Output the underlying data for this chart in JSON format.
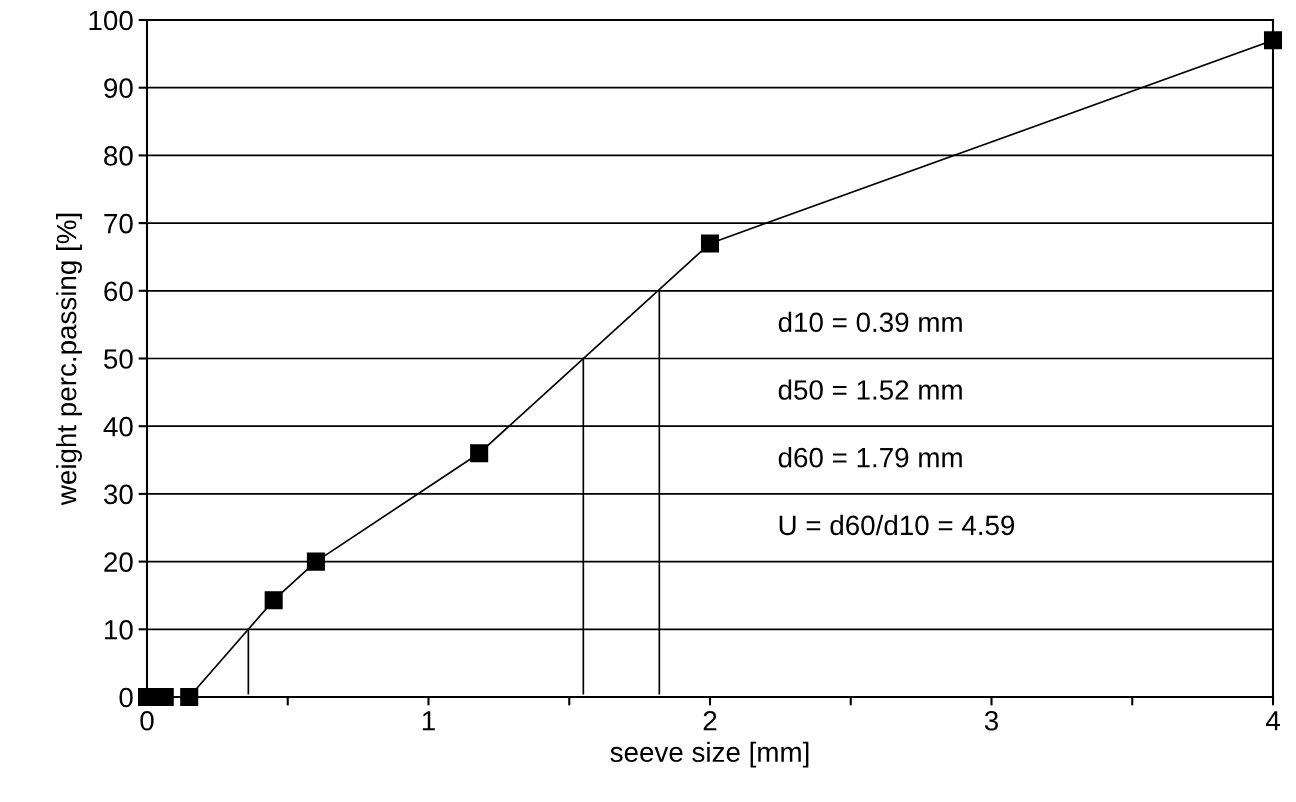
{
  "chart_data": {
    "type": "line",
    "xlabel": "seeve size [mm]",
    "ylabel": "weight perc.passing [%]",
    "xlim": [
      0,
      4
    ],
    "ylim": [
      0,
      100
    ],
    "xticks": [
      0,
      {
        "value": 0.5,
        "label": null
      },
      1,
      {
        "value": 1.5,
        "label": null
      },
      2,
      {
        "value": 2.5,
        "label": null
      },
      3,
      {
        "value": 3.5,
        "label": null
      },
      4
    ],
    "yticks": [
      0,
      10,
      20,
      30,
      40,
      50,
      60,
      70,
      80,
      90,
      100
    ],
    "grid": "y",
    "marker": "square",
    "line_style": "solid",
    "series": [
      {
        "color": "#000000",
        "x": [
          0,
          0.04,
          0.063,
          0.15,
          0.45,
          0.6,
          1.18,
          2,
          4
        ],
        "values": [
          0,
          0,
          0,
          0,
          14.3,
          20,
          36,
          67,
          97
        ]
      },
      {
        "color": "#000000",
        "marker": "none",
        "x": [
          0.36,
          0.36
        ],
        "values": [
          0.5,
          10
        ]
      },
      {
        "color": "#000000",
        "marker": "none",
        "x": [
          1.55,
          1.55
        ],
        "values": [
          0.5,
          50
        ]
      },
      {
        "color": "#000000",
        "marker": "none",
        "x": [
          1.82,
          1.82
        ],
        "values": [
          0.5,
          60
        ]
      }
    ],
    "annotations": [
      "d10 = 0.39 mm",
      "d50 = 1.52 mm",
      "d60 = 1.79 mm",
      "U = d60/d10 = 4.59"
    ]
  }
}
